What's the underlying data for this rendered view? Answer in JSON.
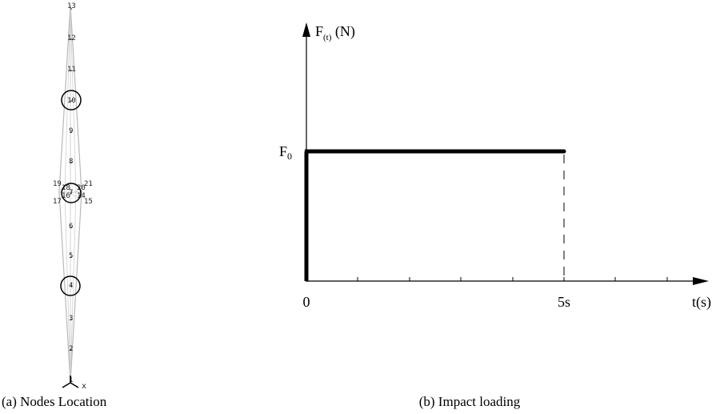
{
  "left_figure": {
    "caption": "(a) Nodes Location",
    "spine_nodes": [
      "1",
      "2",
      "3",
      "4",
      "5",
      "6",
      "7",
      "8",
      "9",
      "10",
      "11",
      "12",
      "13"
    ],
    "side_nodes": [
      "19",
      "18",
      "16",
      "17",
      "20",
      "21",
      "14",
      "15"
    ],
    "highlighted_nodes": [
      "4",
      "7",
      "10"
    ],
    "axis_label": "x"
  },
  "right_figure": {
    "caption": "(b) Impact loading",
    "y_axis_label": "F",
    "y_axis_subscript": "(t)",
    "y_axis_unit": "(N)",
    "x_axis_label": "t(s)",
    "origin_label": "0",
    "level_label": "F",
    "level_subscript": "0",
    "duration_label": "5s"
  }
}
